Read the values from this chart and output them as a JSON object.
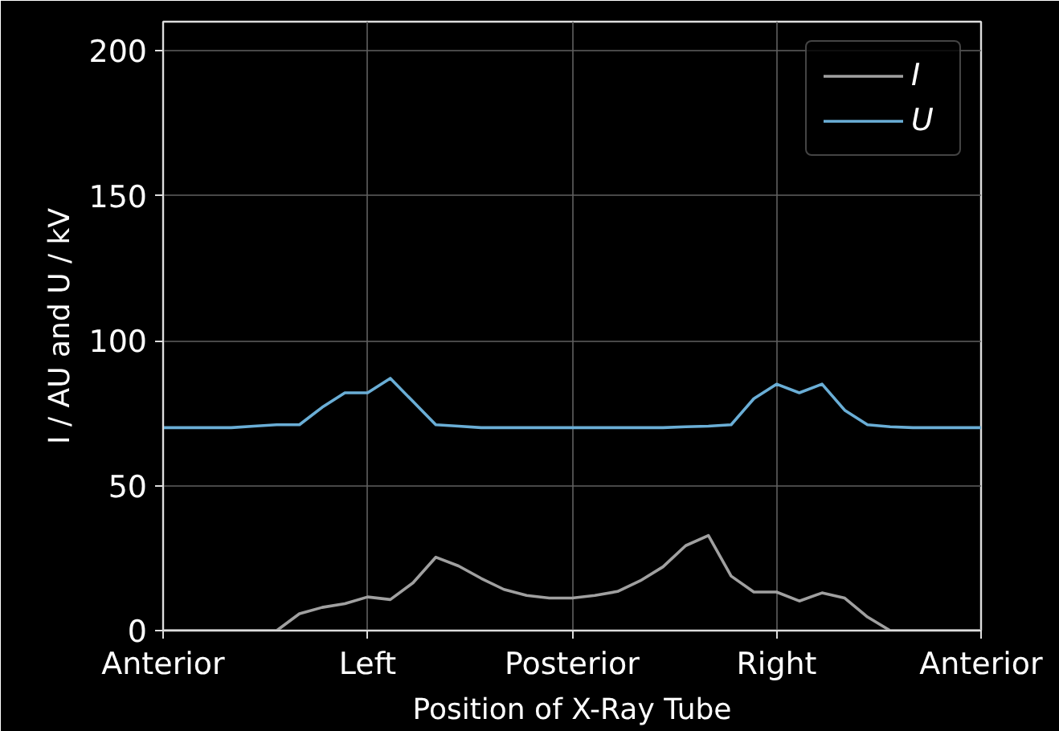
{
  "chart_data": {
    "type": "line",
    "xlabel": "Position of X-Ray Tube",
    "ylabel": "I / AU and U / kV",
    "categories": [
      "Anterior",
      null,
      null,
      null,
      null,
      null,
      null,
      null,
      null,
      "Left",
      null,
      null,
      null,
      null,
      null,
      null,
      null,
      null,
      "Posterior",
      null,
      null,
      null,
      null,
      null,
      null,
      null,
      null,
      "Right",
      null,
      null,
      null,
      null,
      null,
      null,
      null,
      null,
      "Anterior"
    ],
    "series": [
      {
        "name": "I",
        "color": "#a0a0a0",
        "values": [
          0,
          0,
          0,
          0,
          0,
          0,
          5.8,
          8,
          9.3,
          11.6,
          10.7,
          16.5,
          25.3,
          22.3,
          18,
          14.2,
          12.1,
          11.2,
          11.2,
          12.1,
          13.5,
          17.2,
          22,
          29.3,
          32.8,
          18.8,
          13.3,
          13.3,
          10.2,
          13,
          11.2,
          4.7,
          0,
          0,
          0,
          0,
          0
        ]
      },
      {
        "name": "U",
        "color": "#6aaed6",
        "values": [
          70,
          70,
          70,
          70,
          70.5,
          71,
          71,
          77,
          82,
          82,
          87,
          79,
          71,
          70.5,
          70,
          70,
          70,
          70,
          70,
          70,
          70,
          70,
          70,
          70.3,
          70.5,
          71,
          80,
          85,
          82,
          85,
          76,
          71,
          70.3,
          70,
          70,
          70,
          70
        ]
      }
    ],
    "ylim": [
      0,
      210
    ],
    "yticks": [
      0,
      50,
      100,
      150,
      200
    ],
    "grid": true,
    "legend": "top right",
    "line_style": "solid"
  }
}
